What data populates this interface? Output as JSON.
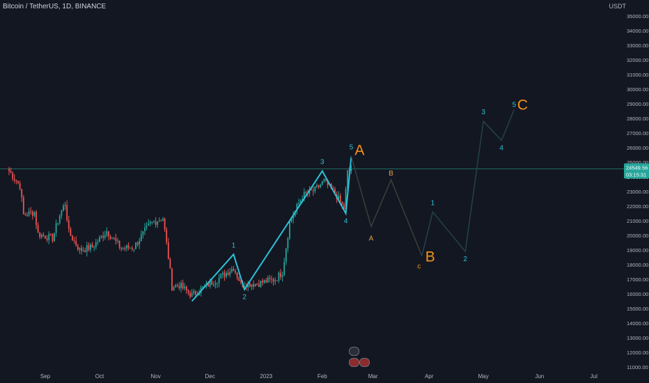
{
  "header": {
    "symbol": "Bitcoin / TetherUS, 1D, BINANCE",
    "currency": "USDT"
  },
  "price_badge": {
    "price": "24549.56",
    "countdown": "03:15:31"
  },
  "events_icon": "lightning-icon",
  "colors": {
    "background": "#131722",
    "up": "#26a69a",
    "down": "#ef5350",
    "wave_main": "#2ec1d8",
    "projection": "#2b3b40",
    "abc_label": "#f7931a",
    "b_label": "#e0a24a",
    "price_line": "#1e6b62"
  },
  "chart_data": {
    "type": "candlestick",
    "ylim": [
      11000,
      35000
    ],
    "y_ticks": [
      "11000.00",
      "12000.00",
      "13000.00",
      "14000.00",
      "15000.00",
      "16000.00",
      "17000.00",
      "18000.00",
      "19000.00",
      "20000.00",
      "21000.00",
      "22000.00",
      "23000.00",
      "24000.00",
      "25000.00",
      "26000.00",
      "27000.00",
      "28000.00",
      "29000.00",
      "30000.00",
      "31000.00",
      "32000.00",
      "33000.00",
      "34000.00",
      "35000.00"
    ],
    "x_ticks": [
      {
        "label": "Sep",
        "date": "2022-09-01"
      },
      {
        "label": "Oct",
        "date": "2022-10-01"
      },
      {
        "label": "Nov",
        "date": "2022-11-01"
      },
      {
        "label": "Dec",
        "date": "2022-12-01"
      },
      {
        "label": "2023",
        "date": "2023-01-01"
      },
      {
        "label": "Feb",
        "date": "2023-02-01"
      },
      {
        "label": "Mar",
        "date": "2023-03-01"
      },
      {
        "label": "Apr",
        "date": "2023-04-01"
      },
      {
        "label": "May",
        "date": "2023-05-01"
      },
      {
        "label": "Jun",
        "date": "2023-06-01"
      },
      {
        "label": "Jul",
        "date": "2023-07-01"
      }
    ],
    "price_segments": [
      {
        "date": "2022-08-12",
        "price": 24400
      },
      {
        "date": "2022-08-18",
        "price": 23400
      },
      {
        "date": "2022-08-20",
        "price": 21400
      },
      {
        "date": "2022-08-26",
        "price": 21600
      },
      {
        "date": "2022-08-28",
        "price": 20100
      },
      {
        "date": "2022-09-05",
        "price": 19800
      },
      {
        "date": "2022-09-09",
        "price": 21400
      },
      {
        "date": "2022-09-12",
        "price": 22200
      },
      {
        "date": "2022-09-14",
        "price": 20200
      },
      {
        "date": "2022-09-20",
        "price": 19000
      },
      {
        "date": "2022-09-27",
        "price": 19200
      },
      {
        "date": "2022-10-05",
        "price": 20300
      },
      {
        "date": "2022-10-13",
        "price": 19100
      },
      {
        "date": "2022-10-20",
        "price": 19200
      },
      {
        "date": "2022-10-25",
        "price": 20100
      },
      {
        "date": "2022-10-29",
        "price": 20800
      },
      {
        "date": "2022-11-05",
        "price": 21200
      },
      {
        "date": "2022-11-08",
        "price": 18500
      },
      {
        "date": "2022-11-10",
        "price": 16500
      },
      {
        "date": "2022-11-14",
        "price": 16600
      },
      {
        "date": "2022-11-21",
        "price": 15900
      },
      {
        "date": "2022-11-28",
        "price": 16500
      },
      {
        "date": "2022-12-05",
        "price": 17000
      },
      {
        "date": "2022-12-14",
        "price": 17800
      },
      {
        "date": "2022-12-18",
        "price": 16700
      },
      {
        "date": "2022-12-27",
        "price": 16700
      },
      {
        "date": "2023-01-06",
        "price": 17000
      },
      {
        "date": "2023-01-10",
        "price": 17500
      },
      {
        "date": "2023-01-14",
        "price": 20900
      },
      {
        "date": "2023-01-21",
        "price": 22700
      },
      {
        "date": "2023-01-28",
        "price": 23100
      },
      {
        "date": "2023-02-02",
        "price": 23700
      },
      {
        "date": "2023-02-09",
        "price": 22700
      },
      {
        "date": "2023-02-13",
        "price": 21800
      },
      {
        "date": "2023-02-15",
        "price": 24300
      },
      {
        "date": "2023-02-17",
        "price": 24549.56
      }
    ],
    "series": [
      {
        "role": "completed impulse",
        "points": [
          {
            "date": "2022-11-21",
            "price": 15500
          },
          {
            "date": "2022-12-14",
            "price": 18700
          },
          {
            "date": "2022-12-20",
            "price": 16300
          },
          {
            "date": "2023-02-01",
            "price": 24400
          },
          {
            "date": "2023-02-14",
            "price": 21500
          },
          {
            "date": "2023-02-17",
            "price": 25400
          }
        ],
        "labels": [
          "1",
          "2",
          "3",
          "4",
          "5"
        ]
      },
      {
        "role": "projection ABC",
        "points": [
          {
            "date": "2023-02-17",
            "price": 25400
          },
          {
            "date": "2023-02-28",
            "price": 20600
          },
          {
            "date": "2023-03-11",
            "price": 23800
          },
          {
            "date": "2023-03-28",
            "price": 18600
          }
        ],
        "labels": [
          "A",
          "B",
          "c"
        ]
      },
      {
        "role": "projection impulse",
        "points": [
          {
            "date": "2023-03-28",
            "price": 18600
          },
          {
            "date": "2023-04-03",
            "price": 21600
          },
          {
            "date": "2023-04-21",
            "price": 18900
          },
          {
            "date": "2023-05-01",
            "price": 27800
          },
          {
            "date": "2023-05-11",
            "price": 26500
          },
          {
            "date": "2023-05-18",
            "price": 28600
          }
        ],
        "labels": [
          "1",
          "2",
          "3",
          "4",
          "5"
        ]
      }
    ],
    "degree_labels": [
      "A",
      "B",
      "C"
    ],
    "current_price": 24549.56
  }
}
